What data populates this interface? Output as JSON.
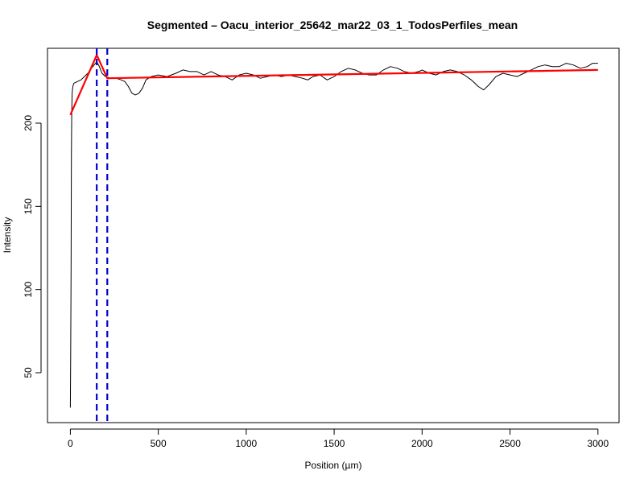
{
  "chart_data": {
    "type": "line",
    "title": "Segmented – Oacu_interior_25642_mar22_03_1_TodosPerfiles_mean",
    "xlabel": "Position (µm)",
    "ylabel": "Intensity",
    "xlim": [
      -130,
      3120
    ],
    "ylim": [
      20,
      245
    ],
    "xticks": [
      0,
      500,
      1000,
      1500,
      2000,
      2500,
      3000
    ],
    "yticks": [
      50,
      100,
      150,
      200
    ],
    "grid": false,
    "legend": "none",
    "series": [
      {
        "kind": "raw-profile",
        "color": "#000000",
        "points": [
          [
            0,
            29
          ],
          [
            2,
            60
          ],
          [
            4,
            112
          ],
          [
            6,
            180
          ],
          [
            8,
            206
          ],
          [
            10,
            218
          ],
          [
            14,
            222
          ],
          [
            20,
            224
          ],
          [
            40,
            225
          ],
          [
            60,
            226
          ],
          [
            80,
            228
          ],
          [
            100,
            230
          ],
          [
            120,
            233
          ],
          [
            135,
            235
          ],
          [
            150,
            237
          ],
          [
            165,
            234
          ],
          [
            180,
            230
          ],
          [
            200,
            228
          ],
          [
            230,
            227
          ],
          [
            260,
            227
          ],
          [
            290,
            226
          ],
          [
            310,
            225
          ],
          [
            330,
            222
          ],
          [
            350,
            218
          ],
          [
            370,
            217
          ],
          [
            390,
            218
          ],
          [
            410,
            221
          ],
          [
            430,
            226
          ],
          [
            460,
            228
          ],
          [
            500,
            229
          ],
          [
            550,
            228
          ],
          [
            600,
            230
          ],
          [
            640,
            232
          ],
          [
            680,
            231
          ],
          [
            720,
            231
          ],
          [
            760,
            229
          ],
          [
            800,
            231
          ],
          [
            840,
            229
          ],
          [
            880,
            228
          ],
          [
            920,
            226
          ],
          [
            960,
            229
          ],
          [
            1000,
            230
          ],
          [
            1040,
            229
          ],
          [
            1080,
            227
          ],
          [
            1120,
            228
          ],
          [
            1160,
            229
          ],
          [
            1200,
            228
          ],
          [
            1240,
            229
          ],
          [
            1280,
            228
          ],
          [
            1320,
            227
          ],
          [
            1350,
            226
          ],
          [
            1380,
            228
          ],
          [
            1420,
            229
          ],
          [
            1460,
            226
          ],
          [
            1500,
            228
          ],
          [
            1540,
            231
          ],
          [
            1580,
            233
          ],
          [
            1620,
            232
          ],
          [
            1660,
            230
          ],
          [
            1700,
            229
          ],
          [
            1740,
            229
          ],
          [
            1780,
            232
          ],
          [
            1820,
            234
          ],
          [
            1860,
            233
          ],
          [
            1900,
            231
          ],
          [
            1940,
            230
          ],
          [
            1980,
            231
          ],
          [
            2000,
            232
          ],
          [
            2040,
            230
          ],
          [
            2080,
            229
          ],
          [
            2120,
            231
          ],
          [
            2160,
            232
          ],
          [
            2200,
            231
          ],
          [
            2240,
            229
          ],
          [
            2280,
            226
          ],
          [
            2320,
            222
          ],
          [
            2350,
            220
          ],
          [
            2380,
            223
          ],
          [
            2420,
            228
          ],
          [
            2460,
            230
          ],
          [
            2500,
            229
          ],
          [
            2540,
            228
          ],
          [
            2580,
            230
          ],
          [
            2620,
            232
          ],
          [
            2660,
            234
          ],
          [
            2700,
            235
          ],
          [
            2740,
            234
          ],
          [
            2780,
            234
          ],
          [
            2820,
            236
          ],
          [
            2860,
            235
          ],
          [
            2900,
            233
          ],
          [
            2940,
            234
          ],
          [
            2970,
            236
          ],
          [
            3000,
            236
          ]
        ]
      },
      {
        "kind": "segmented-fit",
        "color": "#ff0000",
        "points": [
          [
            0,
            205
          ],
          [
            150,
            241
          ],
          [
            210,
            227
          ],
          [
            3000,
            232
          ]
        ]
      }
    ],
    "breakpoints": {
      "color": "#0000cc",
      "x": [
        150,
        210
      ]
    }
  }
}
